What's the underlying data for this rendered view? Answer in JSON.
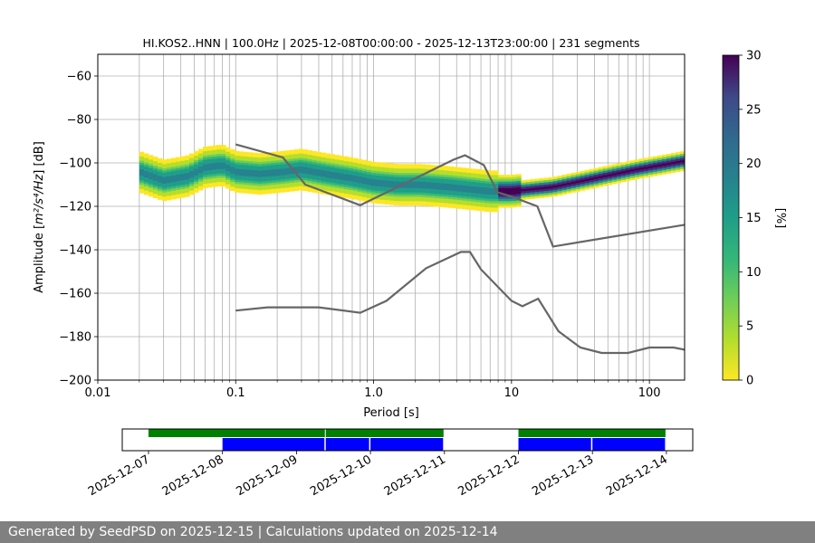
{
  "chart_data": [
    {
      "type": "heatmap",
      "title": "HI.KOS2..HNN | 100.0Hz | 2025-12-08T00:00:00 - 2025-12-13T23:00:00 | 231 segments",
      "xlabel": "Period [s]",
      "ylabel_prefix": "Amplitude [",
      "ylabel_math": "m²/s⁴/Hz",
      "ylabel_suffix": "] [dB]",
      "x_scale": "log",
      "xlim": [
        0.01,
        180
      ],
      "ylim": [
        -200,
        -50
      ],
      "xticks": [
        {
          "value": 0.01,
          "label": "0.01"
        },
        {
          "value": 0.1,
          "label": "0.1"
        },
        {
          "value": 1,
          "label": "1.0"
        },
        {
          "value": 10,
          "label": "10"
        },
        {
          "value": 100,
          "label": "100"
        }
      ],
      "yticks": [
        {
          "value": -200,
          "label": "−200"
        },
        {
          "value": -180,
          "label": "−180"
        },
        {
          "value": -160,
          "label": "−160"
        },
        {
          "value": -140,
          "label": "−140"
        },
        {
          "value": -120,
          "label": "−120"
        },
        {
          "value": -100,
          "label": "−100"
        },
        {
          "value": -80,
          "label": "−80"
        },
        {
          "value": -60,
          "label": "−60"
        }
      ],
      "grid": true,
      "colorbar": {
        "label": "[%]",
        "range": [
          0,
          30
        ],
        "colormap": "viridis_r",
        "ticks": [
          {
            "value": 0,
            "label": "0"
          },
          {
            "value": 5,
            "label": "5"
          },
          {
            "value": 10,
            "label": "10"
          },
          {
            "value": 15,
            "label": "15"
          },
          {
            "value": 20,
            "label": "20"
          },
          {
            "value": 25,
            "label": "25"
          },
          {
            "value": 30,
            "label": "30"
          }
        ]
      },
      "series": [
        {
          "line_color": "#666666",
          "points": [
            [
              0.1,
              -91.5
            ],
            [
              0.22,
              -97.5
            ],
            [
              0.32,
              -110
            ],
            [
              0.8,
              -119.5
            ],
            [
              3.8,
              -98.5
            ],
            [
              4.6,
              -96.5
            ],
            [
              6.3,
              -101
            ],
            [
              7.9,
              -113.5
            ],
            [
              10,
              -115.5
            ],
            [
              15.4,
              -120
            ],
            [
              20,
              -138.5
            ],
            [
              180,
              -128.5
            ]
          ]
        },
        {
          "line_color": "#666666",
          "points": [
            [
              0.1,
              -168
            ],
            [
              0.17,
              -166.5
            ],
            [
              0.4,
              -166.5
            ],
            [
              0.8,
              -169
            ],
            [
              1.24,
              -163.5
            ],
            [
              2.4,
              -148.5
            ],
            [
              4.3,
              -141
            ],
            [
              5,
              -141
            ],
            [
              6.0,
              -149
            ],
            [
              10,
              -163.5
            ],
            [
              12,
              -166
            ],
            [
              15.6,
              -162.5
            ],
            [
              21.9,
              -177.5
            ],
            [
              31.6,
              -185
            ],
            [
              45,
              -187.5
            ],
            [
              70,
              -187.5
            ],
            [
              100,
              -185
            ],
            [
              150,
              -185
            ],
            [
              180,
              -186
            ]
          ]
        }
      ],
      "pdf_band": {
        "period_range": [
          0.02,
          180
        ],
        "ridge": [
          [
            0.02,
            -104
          ],
          [
            0.03,
            -108
          ],
          [
            0.045,
            -106
          ],
          [
            0.06,
            -102
          ],
          [
            0.08,
            -101
          ],
          [
            0.1,
            -104
          ],
          [
            0.15,
            -105
          ],
          [
            0.22,
            -104
          ],
          [
            0.3,
            -103
          ],
          [
            0.45,
            -105
          ],
          [
            0.7,
            -107
          ],
          [
            1.0,
            -109
          ],
          [
            1.5,
            -110
          ],
          [
            2.2,
            -110
          ],
          [
            3.5,
            -111
          ],
          [
            5,
            -112
          ],
          [
            7,
            -113
          ],
          [
            10,
            -113
          ],
          [
            20,
            -111
          ],
          [
            40,
            -107
          ],
          [
            80,
            -103
          ],
          [
            180,
            -99
          ]
        ]
      }
    },
    {
      "type": "timeline",
      "xlim": [
        "2025-12-07",
        "2025-12-14T12:00"
      ],
      "xticks": [
        {
          "value": "2025-12-07",
          "label": "2025-12-07"
        },
        {
          "value": "2025-12-08",
          "label": "2025-12-08"
        },
        {
          "value": "2025-12-09",
          "label": "2025-12-09"
        },
        {
          "value": "2025-12-10",
          "label": "2025-12-10"
        },
        {
          "value": "2025-12-11",
          "label": "2025-12-11"
        },
        {
          "value": "2025-12-12",
          "label": "2025-12-12"
        },
        {
          "value": "2025-12-13",
          "label": "2025-12-13"
        },
        {
          "value": "2025-12-14",
          "label": "2025-12-14"
        }
      ],
      "data_coverage": {
        "color": "#008000",
        "segments": [
          [
            "2025-12-07T00:00",
            "2025-12-09T09:30"
          ],
          [
            "2025-12-09T09:30",
            "2025-12-11T00:00"
          ],
          [
            "2025-12-12T00:00",
            "2025-12-14T00:00"
          ]
        ]
      },
      "psd_coverage": {
        "color": "#0000ff",
        "segments": [
          [
            "2025-12-08T00:00",
            "2025-12-09T09:30"
          ],
          [
            "2025-12-09T09:30",
            "2025-12-10T00:00"
          ],
          [
            "2025-12-10T00:00",
            "2025-12-11T00:00"
          ],
          [
            "2025-12-12T00:00",
            "2025-12-13T00:00"
          ],
          [
            "2025-12-13T00:00",
            "2025-12-14T00:00"
          ]
        ]
      }
    }
  ],
  "footer": {
    "text": "Generated by SeedPSD on 2025-12-15 | Calculations updated on 2025-12-14"
  }
}
